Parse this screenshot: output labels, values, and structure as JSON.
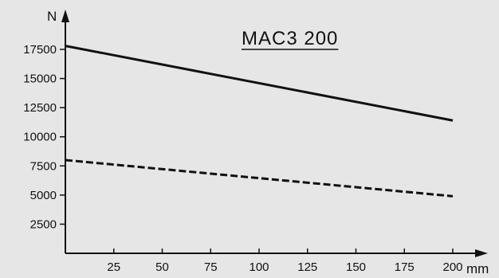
{
  "chart_data": {
    "type": "line",
    "title": "MAC3  200",
    "xlabel": "mm",
    "ylabel": "N",
    "xlim": [
      0,
      210
    ],
    "ylim": [
      0,
      19000
    ],
    "x_ticks": [
      25,
      50,
      75,
      100,
      125,
      150,
      175,
      200
    ],
    "y_ticks": [
      2500,
      5000,
      7500,
      10000,
      12500,
      15000,
      17500
    ],
    "grid": false,
    "legend": "none",
    "series": [
      {
        "style": "solid",
        "color": "#111111",
        "x": [
          0,
          200
        ],
        "y": [
          17800,
          11400
        ]
      },
      {
        "style": "dashed",
        "color": "#111111",
        "x": [
          0,
          200
        ],
        "y": [
          8000,
          4900
        ]
      }
    ]
  }
}
